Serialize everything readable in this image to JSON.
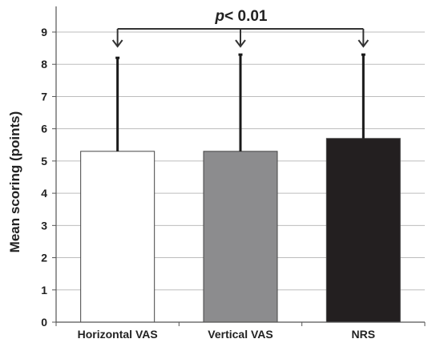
{
  "chart_data": {
    "type": "bar",
    "title": "",
    "xlabel": "",
    "ylabel": "Mean scoring (points)",
    "ylim": [
      0,
      9
    ],
    "yticks": [
      0,
      1,
      2,
      3,
      4,
      5,
      6,
      7,
      8,
      9
    ],
    "categories": [
      "Horizontal VAS",
      "Vertical VAS",
      "NRS"
    ],
    "values": [
      5.3,
      5.3,
      5.7
    ],
    "error_upper": [
      8.2,
      8.3,
      8.3
    ],
    "bar_colors": [
      "#ffffff",
      "#8c8c8e",
      "#231f20"
    ],
    "grid": true,
    "legend": "none",
    "annotation": {
      "p_symbol": "p",
      "p_text": "< 0.01",
      "spans_categories": [
        "Horizontal VAS",
        "Vertical VAS",
        "NRS"
      ]
    }
  }
}
